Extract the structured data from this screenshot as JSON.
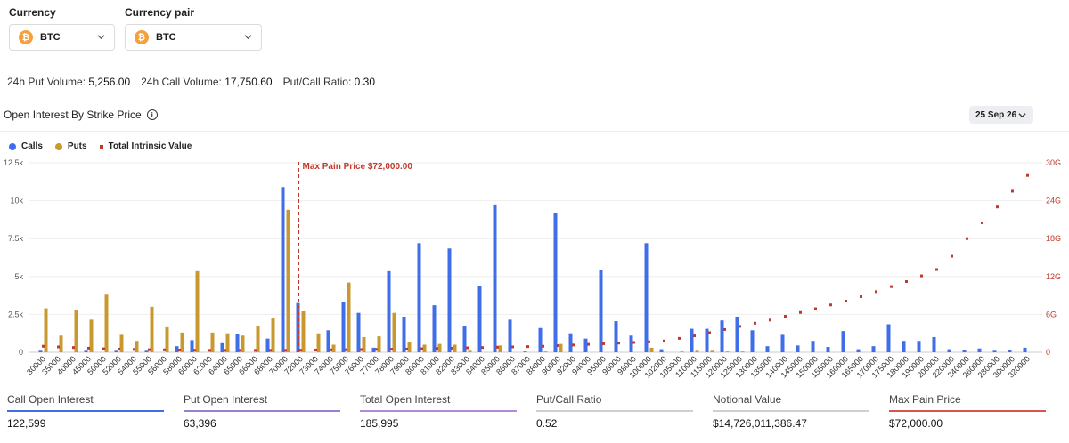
{
  "selectors": {
    "currency_label": "Currency",
    "currency_value": "BTC",
    "pair_label": "Currency pair",
    "pair_value": "BTC",
    "coin_symbol": "₿"
  },
  "stats": {
    "put_volume_label": "24h Put Volume:",
    "put_volume_value": "5,256.00",
    "call_volume_label": "24h Call Volume:",
    "call_volume_value": "17,750.60",
    "ratio_label": "Put/Call Ratio:",
    "ratio_value": "0.30"
  },
  "section": {
    "title": "Open Interest By Strike Price",
    "expiry": "25 Sep 26"
  },
  "legend": {
    "calls": "Calls",
    "puts": "Puts",
    "intrinsic": "Total Intrinsic Value"
  },
  "colors": {
    "calls": "#3f6ee8",
    "puts": "#c9992f",
    "intrinsic": "#c0392b",
    "accent": "#f5a03a"
  },
  "chart_data": {
    "type": "bar",
    "categories": [
      "30000",
      "35000",
      "40000",
      "45000",
      "50000",
      "52000",
      "54000",
      "55000",
      "56000",
      "58000",
      "60000",
      "62000",
      "64000",
      "65000",
      "66000",
      "68000",
      "70000",
      "72000",
      "73000",
      "74000",
      "75000",
      "76000",
      "77000",
      "78000",
      "79000",
      "80000",
      "81000",
      "82000",
      "83000",
      "84000",
      "85000",
      "86000",
      "87000",
      "88000",
      "90000",
      "92000",
      "94000",
      "95000",
      "96000",
      "98000",
      "100000",
      "102000",
      "105000",
      "110000",
      "115000",
      "120000",
      "125000",
      "130000",
      "135000",
      "140000",
      "145000",
      "150000",
      "155000",
      "160000",
      "165000",
      "170000",
      "175000",
      "180000",
      "190000",
      "200000",
      "220000",
      "240000",
      "260000",
      "280000",
      "300000",
      "320000"
    ],
    "series": [
      {
        "name": "Calls",
        "values": [
          100,
          0,
          0,
          100,
          0,
          100,
          0,
          100,
          0,
          400,
          800,
          0,
          600,
          1200,
          0,
          900,
          10900,
          3250,
          0,
          1450,
          3300,
          2600,
          300,
          5350,
          2350,
          7200,
          3100,
          6850,
          1700,
          4400,
          9750,
          2150,
          50,
          1600,
          9200,
          1250,
          900,
          5450,
          2050,
          1100,
          7200,
          200,
          0,
          1550,
          1550,
          2100,
          2350,
          1450,
          400,
          1150,
          450,
          750,
          350,
          1400,
          200,
          400,
          1850,
          750,
          750,
          1000,
          200,
          150,
          250,
          100,
          150,
          300
        ]
      },
      {
        "name": "Puts",
        "values": [
          2900,
          1100,
          2800,
          2150,
          3800,
          1150,
          750,
          3000,
          1650,
          1300,
          5350,
          1300,
          1250,
          1100,
          1700,
          2250,
          9400,
          2700,
          1250,
          500,
          4600,
          1000,
          1050,
          2600,
          700,
          500,
          550,
          500,
          100,
          0,
          450,
          0,
          0,
          50,
          550,
          0,
          0,
          0,
          0,
          0,
          300,
          0,
          50,
          100,
          100,
          50,
          50,
          0,
          0,
          0,
          0,
          0,
          0,
          0,
          0,
          0,
          0,
          0,
          0,
          0,
          0,
          0,
          0,
          0,
          0,
          0
        ]
      },
      {
        "name": "Total Intrinsic Value",
        "values": [
          0.95,
          0.85,
          0.75,
          0.65,
          0.55,
          0.5,
          0.45,
          0.4,
          0.38,
          0.35,
          0.32,
          0.3,
          0.3,
          0.3,
          0.3,
          0.3,
          0.3,
          0.32,
          0.35,
          0.38,
          0.4,
          0.42,
          0.45,
          0.48,
          0.5,
          0.55,
          0.6,
          0.65,
          0.7,
          0.75,
          0.8,
          0.85,
          0.9,
          0.95,
          1.05,
          1.15,
          1.25,
          1.35,
          1.45,
          1.55,
          1.65,
          1.8,
          2.2,
          2.6,
          3.1,
          3.6,
          4.1,
          4.6,
          5.1,
          5.7,
          6.3,
          6.9,
          7.5,
          8.1,
          8.8,
          9.6,
          10.4,
          11.2,
          12.1,
          13.1,
          15.2,
          18.0,
          20.5,
          23.0,
          25.5,
          28.0
        ]
      }
    ],
    "y_left": {
      "min": 0,
      "max": 12500,
      "ticks": [
        "0",
        "2.5k",
        "5k",
        "7.5k",
        "10k",
        "12.5k"
      ]
    },
    "y_right": {
      "min": 0,
      "max": 30,
      "ticks": [
        "0",
        "6G",
        "12G",
        "18G",
        "24G",
        "30G"
      ]
    },
    "max_pain": {
      "label": "Max Pain Price $72,000.00",
      "category": "72000"
    }
  },
  "cards": [
    {
      "label": "Call Open Interest",
      "value": "122,599",
      "color": "#3f6ee8"
    },
    {
      "label": "Put Open Interest",
      "value": "63,396",
      "color": "#9b7fd1"
    },
    {
      "label": "Total Open Interest",
      "value": "185,995",
      "color": "#b48ad6"
    },
    {
      "label": "Put/Call Ratio",
      "value": "0.52",
      "color": "#cfcfcf"
    },
    {
      "label": "Notional Value",
      "value": "$14,726,011,386.47",
      "color": "#cfcfcf"
    },
    {
      "label": "Max Pain Price",
      "value": "$72,000.00",
      "color": "#d9534f"
    }
  ]
}
